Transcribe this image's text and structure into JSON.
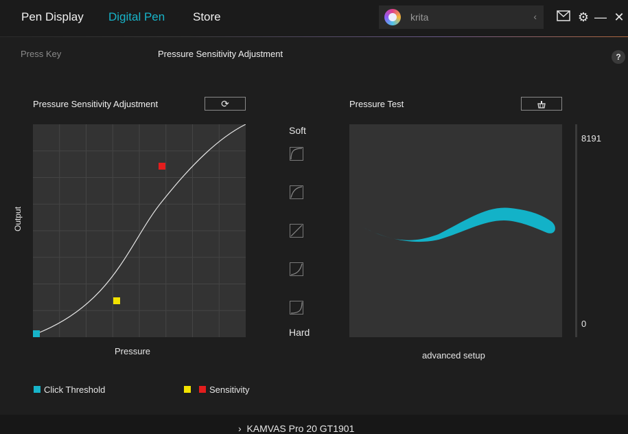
{
  "nav": {
    "items": [
      {
        "label": "Pen Display"
      },
      {
        "label": "Digital Pen"
      },
      {
        "label": "Store"
      }
    ]
  },
  "app_select": {
    "selected": "krita"
  },
  "subnav": {
    "press_key": "Press Key",
    "pressure": "Pressure Sensitivity Adjustment"
  },
  "help_label": "?",
  "pressure_panel": {
    "title": "Pressure Sensitivity Adjustment",
    "ylabel": "Output",
    "xlabel": "Pressure",
    "reset_icon": "refresh-icon"
  },
  "presets": {
    "soft": "Soft",
    "hard": "Hard"
  },
  "test_panel": {
    "title": "Pressure Test",
    "clear_icon": "eraser-icon",
    "max": "8191",
    "min": "0",
    "advanced": "advanced setup"
  },
  "legend": {
    "click_threshold": "Click Threshold",
    "sensitivity": "Sensitivity"
  },
  "colors": {
    "accent": "#17b4c9",
    "threshold": "#17b4c9",
    "sensitivity_low": "#f2e200",
    "sensitivity_high": "#e31d1d"
  },
  "footer": {
    "device": "KAMVAS Pro 20 GT1901"
  }
}
